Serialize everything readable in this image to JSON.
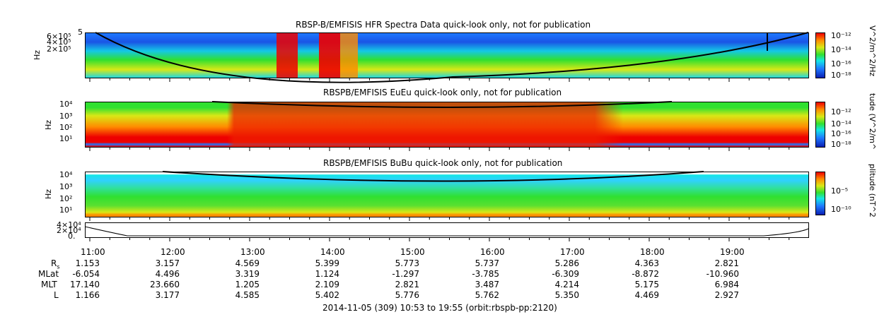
{
  "chart_data": [
    {
      "type": "heatmap",
      "title": "RBSP-B/EMFISIS  HFR Spectra Data quick-look only, not for publication",
      "ylabel": "Hz",
      "yticks": [
        "6×10⁵",
        "4×10⁵",
        "2×10⁵"
      ],
      "ytick_top": "5",
      "colorbar_label": "V^2/m^2/Hz",
      "colorbar_ticks": [
        "10⁻¹²",
        "10⁻¹⁴",
        "10⁻¹⁶",
        "10⁻¹⁸"
      ]
    },
    {
      "type": "heatmap",
      "title": "RBSPB/EMFISIS  EuEu quick-look only, not for publication",
      "ylabel": "Hz",
      "yticks": [
        "10⁴",
        "10³",
        "10²",
        "10¹"
      ],
      "colorbar_label": "tude (V^2/m^",
      "colorbar_ticks": [
        "10⁻¹²",
        "10⁻¹⁴",
        "10⁻¹⁶",
        "10⁻¹⁸"
      ]
    },
    {
      "type": "heatmap",
      "title": "RBSPB/EMFISIS  BuBu quick-look only, not for publication",
      "ylabel": "Hz",
      "yticks": [
        "10⁴",
        "10³",
        "10²",
        "10¹"
      ],
      "colorbar_label": "plitude (nT^2",
      "colorbar_ticks": [
        "10⁻⁵",
        "10⁻¹⁰"
      ]
    },
    {
      "type": "line",
      "yticks": [
        "4×10⁴",
        "2×10⁴",
        "0."
      ],
      "x_range": [
        "10:53",
        "19:55"
      ]
    }
  ],
  "time_axis": {
    "labels": [
      "11:00",
      "12:00",
      "13:00",
      "14:00",
      "15:00",
      "16:00",
      "17:00",
      "18:00",
      "19:00"
    ]
  },
  "ephemeris": {
    "rows": [
      {
        "label": "R",
        "sub": "s",
        "values": [
          "1.153",
          "3.157",
          "4.569",
          "5.399",
          "5.773",
          "5.737",
          "5.286",
          "4.363",
          "2.821"
        ]
      },
      {
        "label": "MLat",
        "sub": "",
        "values": [
          "-6.054",
          "4.496",
          "3.319",
          "1.124",
          "-1.297",
          "-3.785",
          "-6.309",
          "-8.872",
          "-10.960"
        ]
      },
      {
        "label": "MLT",
        "sub": "",
        "values": [
          "17.140",
          "23.660",
          "1.205",
          "2.109",
          "2.821",
          "3.487",
          "4.214",
          "5.175",
          "6.984"
        ]
      },
      {
        "label": "L",
        "sub": "",
        "values": [
          "1.166",
          "3.177",
          "4.585",
          "5.402",
          "5.776",
          "5.762",
          "5.350",
          "4.469",
          "2.927"
        ]
      }
    ]
  },
  "footer": "2014-11-05 (309) 10:53 to 19:55 (orbit:rbspb-pp:2120)"
}
